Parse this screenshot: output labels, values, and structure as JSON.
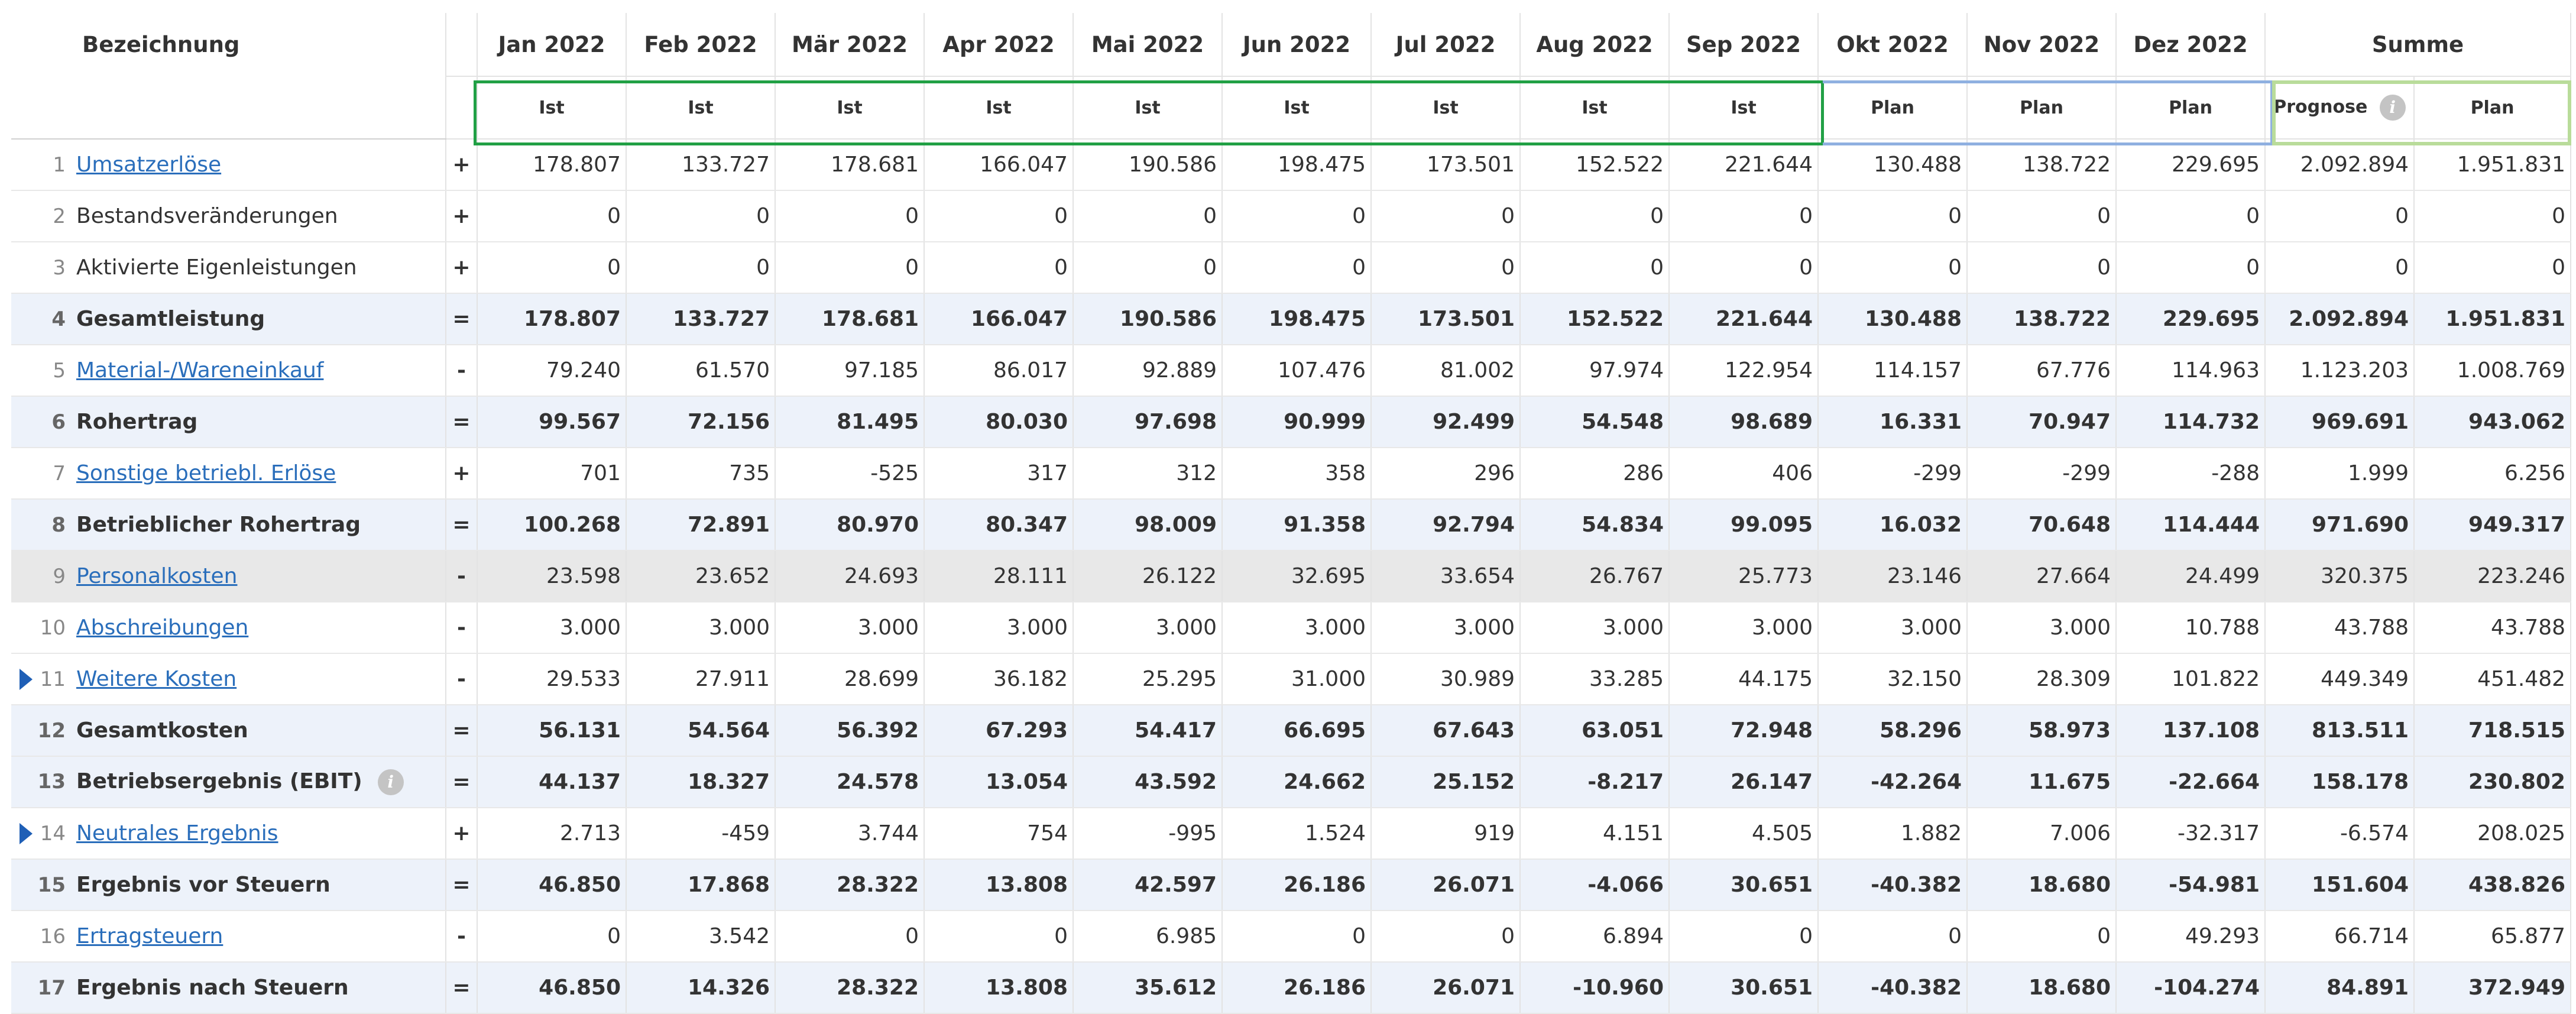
{
  "header": {
    "label": "Bezeichnung",
    "months": [
      "Jan 2022",
      "Feb 2022",
      "Mär 2022",
      "Apr 2022",
      "Mai 2022",
      "Jun 2022",
      "Jul 2022",
      "Aug 2022",
      "Sep 2022",
      "Okt 2022",
      "Nov 2022",
      "Dez 2022"
    ],
    "sum": "Summe",
    "subs": [
      "Ist",
      "Ist",
      "Ist",
      "Ist",
      "Ist",
      "Ist",
      "Ist",
      "Ist",
      "Ist",
      "Plan",
      "Plan",
      "Plan"
    ],
    "prognose": "Prognose",
    "plan": "Plan",
    "info_glyph": "i"
  },
  "colors": {
    "ist_frame": "#21a045",
    "plan_frame": "#8fb0e0",
    "sum_frame": "#b9dc9a",
    "total_row_bg": "#edf2fa",
    "link": "#2a6ebb",
    "expander": "#1f5fb6"
  },
  "rows": [
    {
      "n": "1",
      "name": "Umsatzerlöse",
      "sign": "+",
      "link": true,
      "vals": [
        "178.807",
        "133.727",
        "178.681",
        "166.047",
        "190.586",
        "198.475",
        "173.501",
        "152.522",
        "221.644",
        "130.488",
        "138.722",
        "229.695",
        "2.092.894",
        "1.951.831"
      ]
    },
    {
      "n": "2",
      "name": "Bestandsveränderungen",
      "sign": "+",
      "vals": [
        "0",
        "0",
        "0",
        "0",
        "0",
        "0",
        "0",
        "0",
        "0",
        "0",
        "0",
        "0",
        "0",
        "0"
      ]
    },
    {
      "n": "3",
      "name": "Aktivierte Eigenleistungen",
      "sign": "+",
      "vals": [
        "0",
        "0",
        "0",
        "0",
        "0",
        "0",
        "0",
        "0",
        "0",
        "0",
        "0",
        "0",
        "0",
        "0"
      ]
    },
    {
      "n": "4",
      "name": "Gesamtleistung",
      "sign": "=",
      "total": true,
      "vals": [
        "178.807",
        "133.727",
        "178.681",
        "166.047",
        "190.586",
        "198.475",
        "173.501",
        "152.522",
        "221.644",
        "130.488",
        "138.722",
        "229.695",
        "2.092.894",
        "1.951.831"
      ]
    },
    {
      "n": "5",
      "name": "Material-/Wareneinkauf",
      "sign": "-",
      "link": true,
      "vals": [
        "79.240",
        "61.570",
        "97.185",
        "86.017",
        "92.889",
        "107.476",
        "81.002",
        "97.974",
        "122.954",
        "114.157",
        "67.776",
        "114.963",
        "1.123.203",
        "1.008.769"
      ]
    },
    {
      "n": "6",
      "name": "Rohertrag",
      "sign": "=",
      "total": true,
      "vals": [
        "99.567",
        "72.156",
        "81.495",
        "80.030",
        "97.698",
        "90.999",
        "92.499",
        "54.548",
        "98.689",
        "16.331",
        "70.947",
        "114.732",
        "969.691",
        "943.062"
      ]
    },
    {
      "n": "7",
      "name": "Sonstige betriebl. Erlöse",
      "sign": "+",
      "link": true,
      "vals": [
        "701",
        "735",
        "-525",
        "317",
        "312",
        "358",
        "296",
        "286",
        "406",
        "-299",
        "-299",
        "-288",
        "1.999",
        "6.256"
      ]
    },
    {
      "n": "8",
      "name": "Betrieblicher Rohertrag",
      "sign": "=",
      "total": true,
      "vals": [
        "100.268",
        "72.891",
        "80.970",
        "80.347",
        "98.009",
        "91.358",
        "92.794",
        "54.834",
        "99.095",
        "16.032",
        "70.648",
        "114.444",
        "971.690",
        "949.317"
      ]
    },
    {
      "n": "9",
      "name": "Personalkosten",
      "sign": "-",
      "link": true,
      "shade": true,
      "vals": [
        "23.598",
        "23.652",
        "24.693",
        "28.111",
        "26.122",
        "32.695",
        "33.654",
        "26.767",
        "25.773",
        "23.146",
        "27.664",
        "24.499",
        "320.375",
        "223.246"
      ]
    },
    {
      "n": "10",
      "name": "Abschreibungen",
      "sign": "-",
      "link": true,
      "vals": [
        "3.000",
        "3.000",
        "3.000",
        "3.000",
        "3.000",
        "3.000",
        "3.000",
        "3.000",
        "3.000",
        "3.000",
        "3.000",
        "10.788",
        "43.788",
        "43.788"
      ]
    },
    {
      "n": "11",
      "name": "Weitere Kosten",
      "sign": "-",
      "link": true,
      "expander": true,
      "vals": [
        "29.533",
        "27.911",
        "28.699",
        "36.182",
        "25.295",
        "31.000",
        "30.989",
        "33.285",
        "44.175",
        "32.150",
        "28.309",
        "101.822",
        "449.349",
        "451.482"
      ]
    },
    {
      "n": "12",
      "name": "Gesamtkosten",
      "sign": "=",
      "total": true,
      "vals": [
        "56.131",
        "54.564",
        "56.392",
        "67.293",
        "54.417",
        "66.695",
        "67.643",
        "63.051",
        "72.948",
        "58.296",
        "58.973",
        "137.108",
        "813.511",
        "718.515"
      ]
    },
    {
      "n": "13",
      "name": "Betriebsergebnis (EBIT)",
      "sign": "=",
      "total": true,
      "info": true,
      "vals": [
        "44.137",
        "18.327",
        "24.578",
        "13.054",
        "43.592",
        "24.662",
        "25.152",
        "-8.217",
        "26.147",
        "-42.264",
        "11.675",
        "-22.664",
        "158.178",
        "230.802"
      ]
    },
    {
      "n": "14",
      "name": "Neutrales Ergebnis",
      "sign": "+",
      "link": true,
      "expander": true,
      "vals": [
        "2.713",
        "-459",
        "3.744",
        "754",
        "-995",
        "1.524",
        "919",
        "4.151",
        "4.505",
        "1.882",
        "7.006",
        "-32.317",
        "-6.574",
        "208.025"
      ]
    },
    {
      "n": "15",
      "name": "Ergebnis vor Steuern",
      "sign": "=",
      "total": true,
      "vals": [
        "46.850",
        "17.868",
        "28.322",
        "13.808",
        "42.597",
        "26.186",
        "26.071",
        "-4.066",
        "30.651",
        "-40.382",
        "18.680",
        "-54.981",
        "151.604",
        "438.826"
      ]
    },
    {
      "n": "16",
      "name": "Ertragsteuern",
      "sign": "-",
      "link": true,
      "vals": [
        "0",
        "3.542",
        "0",
        "0",
        "6.985",
        "0",
        "0",
        "6.894",
        "0",
        "0",
        "0",
        "49.293",
        "66.714",
        "65.877"
      ]
    },
    {
      "n": "17",
      "name": "Ergebnis nach Steuern",
      "sign": "=",
      "total": true,
      "vals": [
        "46.850",
        "14.326",
        "28.322",
        "13.808",
        "35.612",
        "26.186",
        "26.071",
        "-10.960",
        "30.651",
        "-40.382",
        "18.680",
        "-104.274",
        "84.891",
        "372.949"
      ]
    }
  ]
}
